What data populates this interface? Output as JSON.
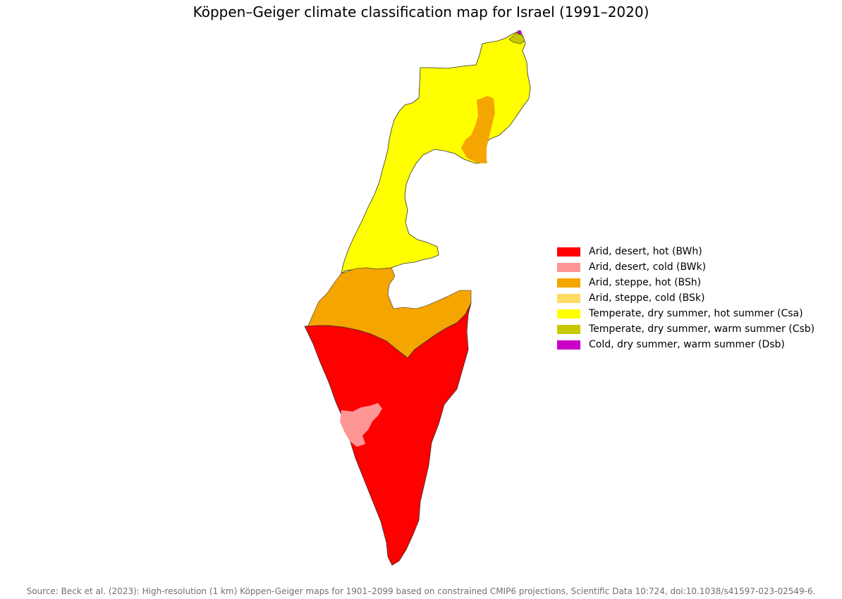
{
  "title": "Köppen–Geiger climate classification map for Israel (1991–2020)",
  "legend": [
    {
      "label": "Arid, desert, hot (BWh)",
      "color": "#ff0000"
    },
    {
      "label": "Arid, desert, cold (BWk)",
      "color": "#ff9696"
    },
    {
      "label": "Arid, steppe, hot (BSh)",
      "color": "#f5a500"
    },
    {
      "label": "Arid, steppe, cold (BSk)",
      "color": "#ffdc64"
    },
    {
      "label": "Temperate, dry summer, hot summer (Csa)",
      "color": "#ffff00"
    },
    {
      "label": "Temperate, dry summer, warm summer (Csb)",
      "color": "#c8c800"
    },
    {
      "label": "Cold, dry summer, warm summer (Dsb)",
      "color": "#c800c8"
    }
  ],
  "source": "Source: Beck et al. (2023): High-resolution (1 km) Köppen-Geiger maps for 1901–2099 based on constrained CMIP6 projections, Scientific Data 10:724, doi:10.1038/s41597-023-02549-6."
}
